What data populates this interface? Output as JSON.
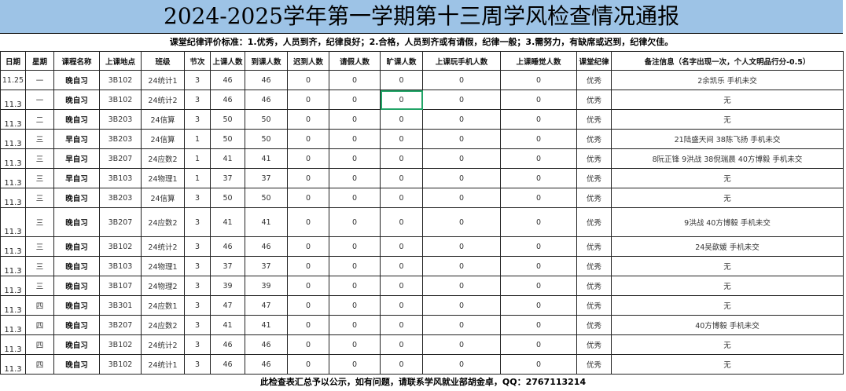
{
  "title": "2024-2025学年第一学期第十三周学风检查情况通报",
  "criteria": "课堂纪律评价标准：1.优秀，人员到齐，纪律良好；2.合格，人员到齐或有请假，纪律一般；3.需努力，有缺席或迟到，纪律欠佳。",
  "headers": [
    "日期",
    "星期",
    "课程名称",
    "上课地点",
    "班级",
    "节次",
    "上课人数",
    "到课人数",
    "迟到人数",
    "请假人数",
    "旷课人数",
    "上课玩手机人数",
    "上课睡觉人数",
    "课堂纪律",
    "备注信息（名字出现一次，个人文明品行分-0.5）"
  ],
  "rows": [
    [
      "11.25",
      "一",
      "晚自习",
      "3B102",
      "24统计1",
      "3",
      "46",
      "46",
      "0",
      "0",
      "0",
      "0",
      "0",
      "优秀",
      "2余凯乐 手机未交"
    ],
    [
      "11.3",
      "一",
      "晚自习",
      "3B102",
      "24统计2",
      "3",
      "46",
      "46",
      "0",
      "0",
      "0",
      "0",
      "0",
      "优秀",
      "无"
    ],
    [
      "11.3",
      "二",
      "晚自习",
      "3B203",
      "24信算",
      "3",
      "50",
      "50",
      "0",
      "0",
      "0",
      "0",
      "0",
      "优秀",
      "无"
    ],
    [
      "11.3",
      "三",
      "早自习",
      "3B203",
      "24信算",
      "1",
      "50",
      "50",
      "0",
      "0",
      "0",
      "0",
      "0",
      "优秀",
      "21陆盛天间 38陈飞扬 手机未交"
    ],
    [
      "11.3",
      "三",
      "早自习",
      "3B207",
      "24应数2",
      "1",
      "41",
      "41",
      "0",
      "0",
      "0",
      "0",
      "0",
      "优秀",
      "8阮正锋 9洪战 38倪瑞晨 40方博毅 手机未交"
    ],
    [
      "11.3",
      "三",
      "早自习",
      "3B103",
      "24物理1",
      "1",
      "37",
      "37",
      "0",
      "0",
      "0",
      "0",
      "0",
      "优秀",
      "无"
    ],
    [
      "11.3",
      "三",
      "晚自习",
      "3B203",
      "24信算",
      "3",
      "50",
      "50",
      "0",
      "0",
      "0",
      "0",
      "0",
      "优秀",
      "无"
    ],
    [
      "11.3",
      "三",
      "晚自习",
      "3B207",
      "24应数2",
      "3",
      "41",
      "41",
      "0",
      "0",
      "0",
      "0",
      "0",
      "优秀",
      "9洪战 40方博毅 手机未交"
    ],
    [
      "11.3",
      "三",
      "晚自习",
      "3B102",
      "24统计2",
      "3",
      "46",
      "46",
      "0",
      "0",
      "0",
      "0",
      "0",
      "优秀",
      "24吴歆媛 手机未交"
    ],
    [
      "11.3",
      "三",
      "晚自习",
      "3B103",
      "24物理1",
      "3",
      "37",
      "37",
      "0",
      "0",
      "0",
      "0",
      "0",
      "优秀",
      "无"
    ],
    [
      "11.3",
      "三",
      "晚自习",
      "3B107",
      "24物理2",
      "3",
      "39",
      "39",
      "0",
      "0",
      "0",
      "0",
      "0",
      "优秀",
      "无"
    ],
    [
      "11.3",
      "四",
      "晚自习",
      "3B301",
      "24应数1",
      "3",
      "47",
      "47",
      "0",
      "0",
      "0",
      "0",
      "0",
      "优秀",
      "无"
    ],
    [
      "11.3",
      "四",
      "晚自习",
      "3B207",
      "24应数2",
      "3",
      "41",
      "41",
      "0",
      "0",
      "0",
      "0",
      "0",
      "优秀",
      "40方博毅 手机未交"
    ],
    [
      "11.3",
      "四",
      "晚自习",
      "3B102",
      "24统计2",
      "3",
      "46",
      "46",
      "0",
      "0",
      "0",
      "0",
      "0",
      "优秀",
      "无"
    ],
    [
      "11.3",
      "四",
      "晚自习",
      "3B102",
      "24统计1",
      "3",
      "46",
      "46",
      "0",
      "0",
      "0",
      "0",
      "0",
      "优秀",
      "无"
    ]
  ],
  "footer": "此检查表汇总予以公示，如有问题，请联系学风就业部胡金卓，QQ：2767113214",
  "colors": {
    "title_bg": "#9dc3e6",
    "selection": "#21a366"
  }
}
